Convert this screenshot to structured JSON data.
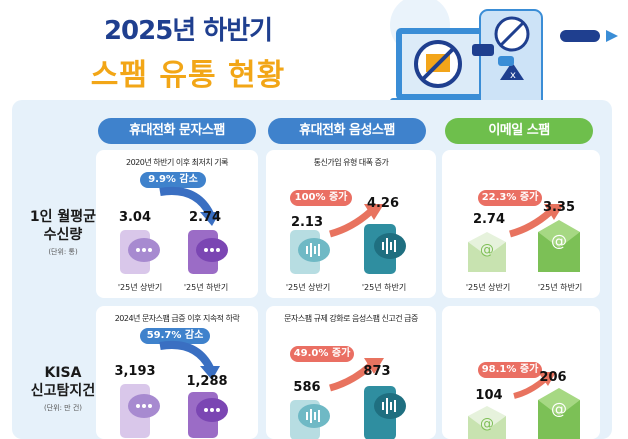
{
  "title": {
    "line1": "2025년 하반기",
    "line2": "스팸 유통 현황"
  },
  "columns": [
    {
      "label": "휴대전화 문자스팸"
    },
    {
      "label": "휴대전화 음성스팸"
    },
    {
      "label": "이메일 스팸"
    }
  ],
  "rows": [
    {
      "label_lines": [
        "1인 월평균",
        "수신량"
      ],
      "unit": "(단위: 통)",
      "cells": [
        {
          "caption": "2020년 하반기 이후 최저치 기록",
          "badge": "9.9% 감소",
          "badge_color": "#3f82cc",
          "before_value": "3.04",
          "after_value": "2.74",
          "before_label": "'25년 상반기",
          "after_label": "'25년 하반기"
        },
        {
          "caption": "통신가입 유형 대폭 증가",
          "badge": "100% 증가",
          "badge_color": "#ea6f63",
          "before_value": "2.13",
          "after_value": "4.26",
          "before_label": "'25년 상반기",
          "after_label": "'25년 하반기"
        },
        {
          "caption": "",
          "badge": "22.3% 증가",
          "badge_color": "#ea6f63",
          "before_value": "2.74",
          "after_value": "3.35",
          "before_label": "'25년 상반기",
          "after_label": "'25년 하반기"
        }
      ]
    },
    {
      "label_lines": [
        "KISA",
        "신고탐지건"
      ],
      "unit": "(단위: 만 건)",
      "cells": [
        {
          "caption": "2024년 문자스팸 급증 이후 지속적 하락",
          "badge": "59.7% 감소",
          "badge_color": "#3f82cc",
          "before_value": "3,193",
          "after_value": "1,288"
        },
        {
          "caption": "문자스팸 규제 강화로 음성스팸 신고건 급증",
          "badge": "49.0% 증가",
          "badge_color": "#ea6f63",
          "before_value": "586",
          "after_value": "873"
        },
        {
          "caption": "",
          "badge": "98.1% 증가",
          "badge_color": "#ea6f63",
          "before_value": "104",
          "after_value": "206"
        }
      ]
    }
  ],
  "icon_names": {
    "hero": "spam-block-illustration",
    "sms_before": "phone-chat-icon",
    "sms_after": "phone-chat-icon",
    "voice": "phone-voice-icon",
    "email": "envelope-at-icon"
  }
}
